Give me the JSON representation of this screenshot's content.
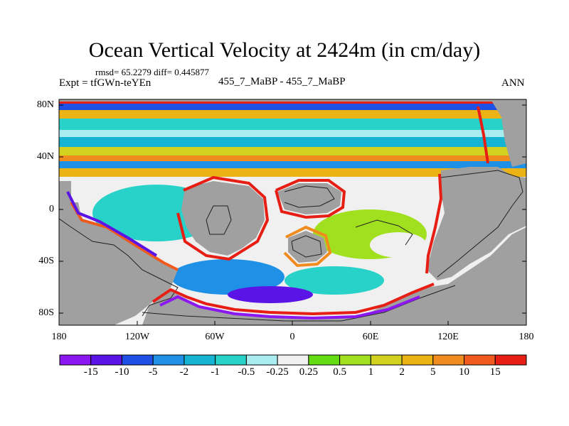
{
  "title": "Ocean Vertical Velocity at 2424m (in cm/day)",
  "stats": "rmsd= 65.2279 diff= 0.445877",
  "expt": "Expt = tfGWn-teYEn",
  "subtitle": "455_7_MaBP - 455_7_MaBP",
  "season": "ANN",
  "chart_data": {
    "type": "heatmap",
    "title": "Ocean Vertical Velocity at 2424m (in cm/day)",
    "xlabel": "",
    "ylabel": "",
    "x_range": [
      -180,
      180
    ],
    "y_range": [
      -90,
      90
    ],
    "x_ticks": [
      {
        "label": "180",
        "value": -180
      },
      {
        "label": "120W",
        "value": -120
      },
      {
        "label": "60W",
        "value": -60
      },
      {
        "label": "0",
        "value": 0
      },
      {
        "label": "60E",
        "value": 60
      },
      {
        "label": "120E",
        "value": 120
      },
      {
        "label": "180",
        "value": 180
      }
    ],
    "y_ticks": [
      {
        "label": "80N",
        "value": 80
      },
      {
        "label": "40N",
        "value": 40
      },
      {
        "label": "0",
        "value": 0
      },
      {
        "label": "40S",
        "value": -40
      },
      {
        "label": "80S",
        "value": -80
      }
    ],
    "colorbar": {
      "labels": [
        "-15",
        "-10",
        "-5",
        "-2",
        "-1",
        "-0.5",
        "-0.25",
        "0.25",
        "0.5",
        "1",
        "2",
        "5",
        "10",
        "15"
      ],
      "colors": [
        "#8b18f0",
        "#5a14e6",
        "#1e50e6",
        "#1e90e6",
        "#14b4d2",
        "#28d2c8",
        "#a8ecf0",
        "#f0f0f0",
        "#64dc14",
        "#a0e01e",
        "#d2d21e",
        "#ebb414",
        "#f08c1e",
        "#f05a1e",
        "#e61e14"
      ]
    },
    "land_color": "#a0a0a0"
  }
}
